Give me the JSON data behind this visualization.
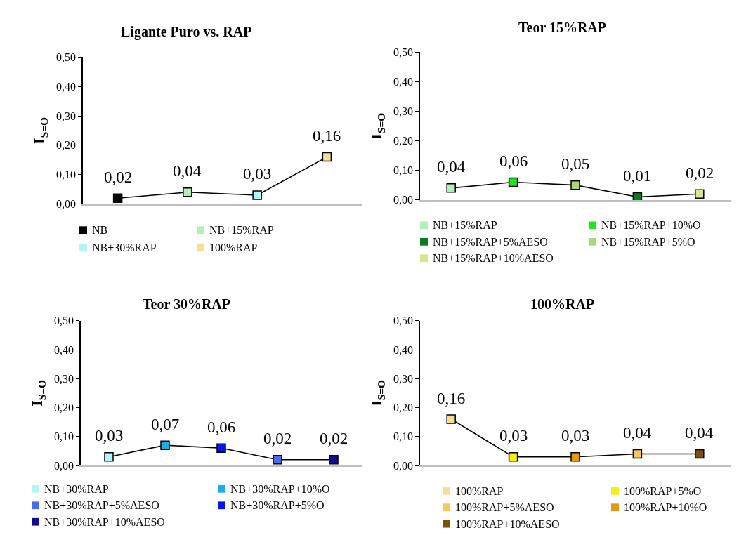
{
  "chart_data": [
    {
      "type": "line",
      "title": "Ligante Puro vs. RAP",
      "ylabel": "I$_{S=O}$",
      "categories": [
        null,
        null,
        null,
        null
      ],
      "ylim": [
        0,
        0.5
      ],
      "yticks": [
        {
          "value": 0,
          "label": "0,00"
        },
        {
          "value": 0.1,
          "label": "0,10"
        },
        {
          "value": 0.2,
          "label": "0,20"
        },
        {
          "value": 0.3,
          "label": "0,30"
        },
        {
          "value": 0.4,
          "label": "0,40"
        },
        {
          "value": 0.5,
          "label": "0,50"
        }
      ],
      "tick_labels": "y",
      "legend": "bottom",
      "marker": "square",
      "series": [
        {
          "color": "#000000",
          "marker": "none",
          "values": [
            0.02,
            0.04,
            0.03,
            0.16
          ],
          "value_labels": [
            "0,02",
            "0,04",
            "0,03",
            "0,16"
          ]
        },
        {
          "type": "scatter",
          "name": "NB",
          "color": "#000000",
          "values": [
            0.02,
            null,
            null,
            null
          ]
        },
        {
          "type": "scatter",
          "name": "NB+15%RAP",
          "color": "#b3f0b3",
          "values": [
            null,
            0.04,
            null,
            null
          ]
        },
        {
          "type": "scatter",
          "name": "NB+30%RAP",
          "color": "#b3f5f5",
          "values": [
            null,
            null,
            0.03,
            null
          ]
        },
        {
          "type": "scatter",
          "name": "100%RAP",
          "color": "#f8dc98",
          "values": [
            null,
            null,
            null,
            0.16
          ]
        }
      ]
    },
    {
      "type": "line",
      "title": "Teor 15%RAP",
      "ylabel": "I$_{S=O}$",
      "categories": [
        null,
        null,
        null,
        null,
        null
      ],
      "ylim": [
        0,
        0.5
      ],
      "yticks": [
        {
          "value": 0,
          "label": "0,00"
        },
        {
          "value": 0.1,
          "label": "0,10"
        },
        {
          "value": 0.2,
          "label": "0,20"
        },
        {
          "value": 0.3,
          "label": "0,30"
        },
        {
          "value": 0.4,
          "label": "0,40"
        },
        {
          "value": 0.5,
          "label": "0,50"
        }
      ],
      "tick_labels": "y",
      "legend": "bottom",
      "marker": "square",
      "series": [
        {
          "color": "#000000",
          "marker": "none",
          "values": [
            0.04,
            0.06,
            0.05,
            0.01,
            0.02
          ],
          "value_labels": [
            "0,04",
            "0,06",
            "0,05",
            "0,01",
            "0,02"
          ]
        },
        {
          "type": "scatter",
          "name": "NB+15%RAP",
          "color": "#b3f0b3",
          "values": [
            0.04,
            null,
            null,
            null,
            null
          ]
        },
        {
          "type": "scatter",
          "name": "NB+15%RAP+10%O",
          "color": "#1ee61e",
          "values": [
            null,
            0.06,
            null,
            null,
            null
          ]
        },
        {
          "type": "scatter",
          "name": "NB+15%RAP+5%AESO",
          "color": "#0a7a1e",
          "values": [
            null,
            null,
            null,
            0.01,
            null
          ]
        },
        {
          "type": "scatter",
          "name": "NB+15%RAP+5%O",
          "color": "#a8d878",
          "values": [
            null,
            null,
            0.05,
            null,
            null
          ]
        },
        {
          "type": "scatter",
          "name": "NB+15%RAP+10%AESO",
          "color": "#d8e68a",
          "values": [
            null,
            null,
            null,
            null,
            0.02
          ]
        }
      ]
    },
    {
      "type": "line",
      "title": "Teor 30%RAP",
      "ylabel": "I$_{S=O}$",
      "categories": [
        null,
        null,
        null,
        null,
        null
      ],
      "ylim": [
        0,
        0.5
      ],
      "yticks": [
        {
          "value": 0,
          "label": "0,00"
        },
        {
          "value": 0.1,
          "label": "0,10"
        },
        {
          "value": 0.2,
          "label": "0,20"
        },
        {
          "value": 0.3,
          "label": "0,30"
        },
        {
          "value": 0.4,
          "label": "0,40"
        },
        {
          "value": 0.5,
          "label": "0,50"
        }
      ],
      "tick_labels": "y",
      "legend": "bottom",
      "marker": "square",
      "series": [
        {
          "color": "#000000",
          "marker": "none",
          "values": [
            0.03,
            0.07,
            0.06,
            0.02,
            0.02
          ],
          "value_labels": [
            "0,03",
            "0,07",
            "0,06",
            "0,02",
            "0,02"
          ]
        },
        {
          "type": "scatter",
          "name": "NB+30%RAP",
          "color": "#b3f5f5",
          "values": [
            0.03,
            null,
            null,
            null,
            null
          ]
        },
        {
          "type": "scatter",
          "name": "NB+30%RAP+10%O",
          "color": "#1aaee6",
          "values": [
            null,
            0.07,
            null,
            null,
            null
          ]
        },
        {
          "type": "scatter",
          "name": "NB+30%RAP+5%AESO",
          "color": "#4a6ee6",
          "values": [
            null,
            null,
            null,
            0.02,
            null
          ]
        },
        {
          "type": "scatter",
          "name": "NB+30%RAP+5%O",
          "color": "#0a14e6",
          "values": [
            null,
            null,
            0.06,
            null,
            null
          ]
        },
        {
          "type": "scatter",
          "name": "NB+30%RAP+10%AESO",
          "color": "#140a8c",
          "values": [
            null,
            null,
            null,
            null,
            0.02
          ]
        }
      ]
    },
    {
      "type": "line",
      "title": "100%RAP",
      "ylabel": "I$_{S=O}$",
      "categories": [
        null,
        null,
        null,
        null,
        null
      ],
      "ylim": [
        0,
        0.5
      ],
      "yticks": [
        {
          "value": 0,
          "label": "0,00"
        },
        {
          "value": 0.1,
          "label": "0,10"
        },
        {
          "value": 0.2,
          "label": "0,20"
        },
        {
          "value": 0.3,
          "label": "0,30"
        },
        {
          "value": 0.4,
          "label": "0,40"
        },
        {
          "value": 0.5,
          "label": "0,50"
        }
      ],
      "tick_labels": "y",
      "legend": "bottom",
      "marker": "square",
      "series": [
        {
          "color": "#000000",
          "marker": "none",
          "values": [
            0.16,
            0.03,
            0.03,
            0.04,
            0.04
          ],
          "value_labels": [
            "0,16",
            "0,03",
            "0,03",
            "0,04",
            "0,04"
          ]
        },
        {
          "type": "scatter",
          "name": "100%RAP",
          "color": "#f8dc98",
          "values": [
            0.16,
            null,
            null,
            null,
            null
          ]
        },
        {
          "type": "scatter",
          "name": "100%RAP+5%O",
          "color": "#f5f00a",
          "values": [
            null,
            0.03,
            null,
            null,
            null
          ]
        },
        {
          "type": "scatter",
          "name": "100%RAP+5%AESO",
          "color": "#f8c858",
          "values": [
            null,
            null,
            null,
            0.04,
            null
          ]
        },
        {
          "type": "scatter",
          "name": "100%RAP+10%O",
          "color": "#e09a14",
          "values": [
            null,
            null,
            0.03,
            null,
            null
          ]
        },
        {
          "type": "scatter",
          "name": "100%RAP+10%AESO",
          "color": "#7a5206",
          "values": [
            null,
            null,
            null,
            null,
            0.04
          ]
        }
      ]
    }
  ]
}
